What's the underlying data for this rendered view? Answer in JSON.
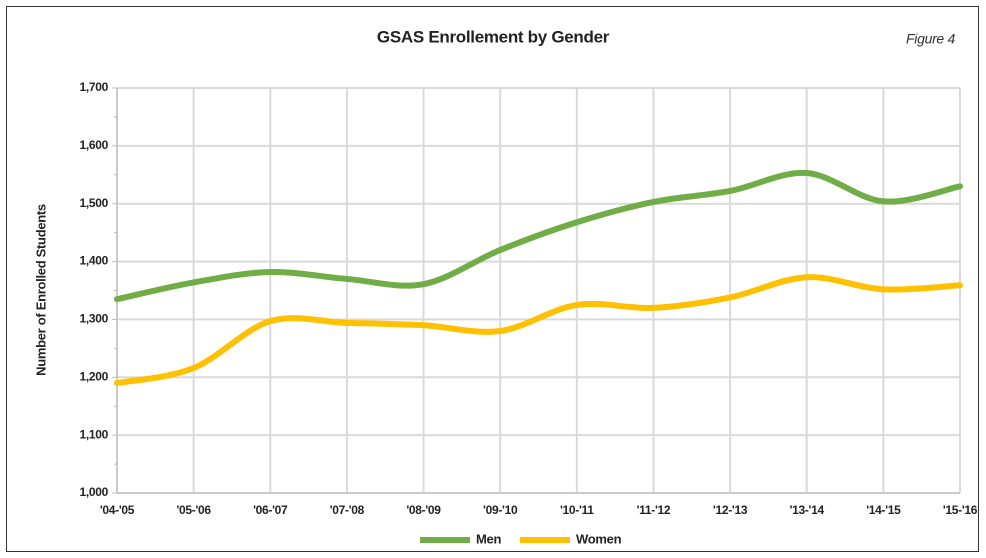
{
  "chart_data": {
    "type": "line",
    "title": "GSAS Enrollement by Gender",
    "annotation": "Figure 4",
    "y_label": "Number of Enrolled Students",
    "categories": [
      "'04-'05",
      "'05-'06",
      "'06-'07",
      "'07-'08",
      "'08-'09",
      "'09-'10",
      "'10-'11",
      "'11-'12",
      "'12-'13",
      "'13-'14",
      "'14-'15",
      "'15-'16"
    ],
    "series": [
      {
        "name": "Men",
        "color": "#70ad47",
        "values": [
          1335,
          1364,
          1382,
          1370,
          1361,
          1420,
          1468,
          1503,
          1522,
          1553,
          1504,
          1530
        ]
      },
      {
        "name": "Women",
        "color": "#ffc000",
        "values": [
          1190,
          1216,
          1297,
          1294,
          1290,
          1280,
          1325,
          1320,
          1338,
          1373,
          1352,
          1359
        ]
      }
    ],
    "ylim": [
      1000,
      1700
    ],
    "yticks": [
      {
        "value": 1000,
        "label": "1,000"
      },
      {
        "value": 1100,
        "label": "1,100"
      },
      {
        "value": 1200,
        "label": "1,200"
      },
      {
        "value": 1300,
        "label": "1,300"
      },
      {
        "value": 1400,
        "label": "1,400"
      },
      {
        "value": 1500,
        "label": "1,500"
      },
      {
        "value": 1600,
        "label": "1,600"
      },
      {
        "value": 1700,
        "label": "1,700"
      }
    ],
    "grid": true,
    "smooth": true,
    "legend": "bottom"
  }
}
